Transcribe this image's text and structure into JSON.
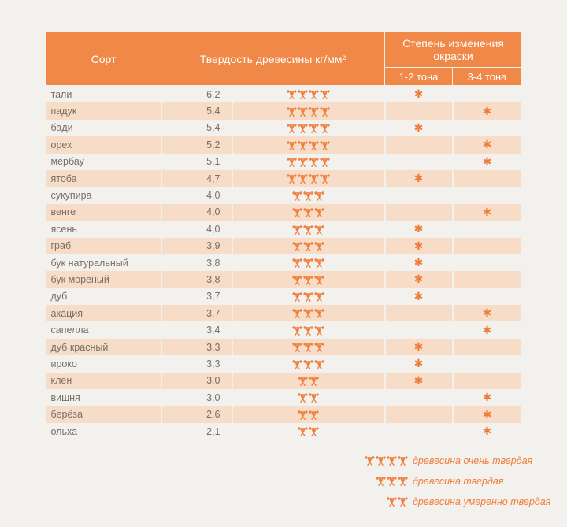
{
  "header": {
    "col_sort": "Сорт",
    "col_hardness": "Твердость древесины кг/мм²",
    "col_color_change": "Степень изменения окраски",
    "sub_1_2": "1-2 тона",
    "sub_3_4": "3-4 тона"
  },
  "rows": [
    {
      "name": "тали",
      "hardness": "6,2",
      "icons": 4,
      "tone": "1-2"
    },
    {
      "name": "падук",
      "hardness": "5,4",
      "icons": 4,
      "tone": "3-4"
    },
    {
      "name": "бади",
      "hardness": "5,4",
      "icons": 4,
      "tone": "1-2"
    },
    {
      "name": "орех",
      "hardness": "5,2",
      "icons": 4,
      "tone": "3-4"
    },
    {
      "name": "мербау",
      "hardness": "5,1",
      "icons": 4,
      "tone": "3-4"
    },
    {
      "name": "ятоба",
      "hardness": "4,7",
      "icons": 4,
      "tone": "1-2"
    },
    {
      "name": "сукупира",
      "hardness": "4,0",
      "icons": 3,
      "tone": ""
    },
    {
      "name": "венге",
      "hardness": "4,0",
      "icons": 3,
      "tone": "3-4"
    },
    {
      "name": "ясень",
      "hardness": "4,0",
      "icons": 3,
      "tone": "1-2"
    },
    {
      "name": "граб",
      "hardness": "3,9",
      "icons": 3,
      "tone": "1-2"
    },
    {
      "name": "бук натуральный",
      "hardness": "3,8",
      "icons": 3,
      "tone": "1-2"
    },
    {
      "name": "бук морёный",
      "hardness": "3,8",
      "icons": 3,
      "tone": "1-2"
    },
    {
      "name": "дуб",
      "hardness": "3,7",
      "icons": 3,
      "tone": "1-2"
    },
    {
      "name": "акация",
      "hardness": "3,7",
      "icons": 3,
      "tone": "3-4"
    },
    {
      "name": "сапелла",
      "hardness": "3,4",
      "icons": 3,
      "tone": "3-4"
    },
    {
      "name": "дуб красный",
      "hardness": "3,3",
      "icons": 3,
      "tone": "1-2"
    },
    {
      "name": "ироко",
      "hardness": "3,3",
      "icons": 3,
      "tone": "1-2"
    },
    {
      "name": "клён",
      "hardness": "3,0",
      "icons": 2,
      "tone": "1-2"
    },
    {
      "name": "вишня",
      "hardness": "3,0",
      "icons": 2,
      "tone": "3-4"
    },
    {
      "name": "берёза",
      "hardness": "2,6",
      "icons": 2,
      "tone": "3-4"
    },
    {
      "name": "ольха",
      "hardness": "2,1",
      "icons": 2,
      "tone": "3-4"
    }
  ],
  "legend": [
    {
      "icons": 4,
      "text": "древесина очень твердая"
    },
    {
      "icons": 3,
      "text": "древесина твердая"
    },
    {
      "icons": 2,
      "text": "древесина умеренно твердая"
    }
  ],
  "colors": {
    "accent": "#f08848",
    "mark": "#ef7d3a",
    "row_alt": "#f7ddc7",
    "text": "#7a6e66"
  },
  "icons": {
    "hardness_icon": "weightlifter-icon",
    "tone_mark": "asterisk-mark"
  }
}
